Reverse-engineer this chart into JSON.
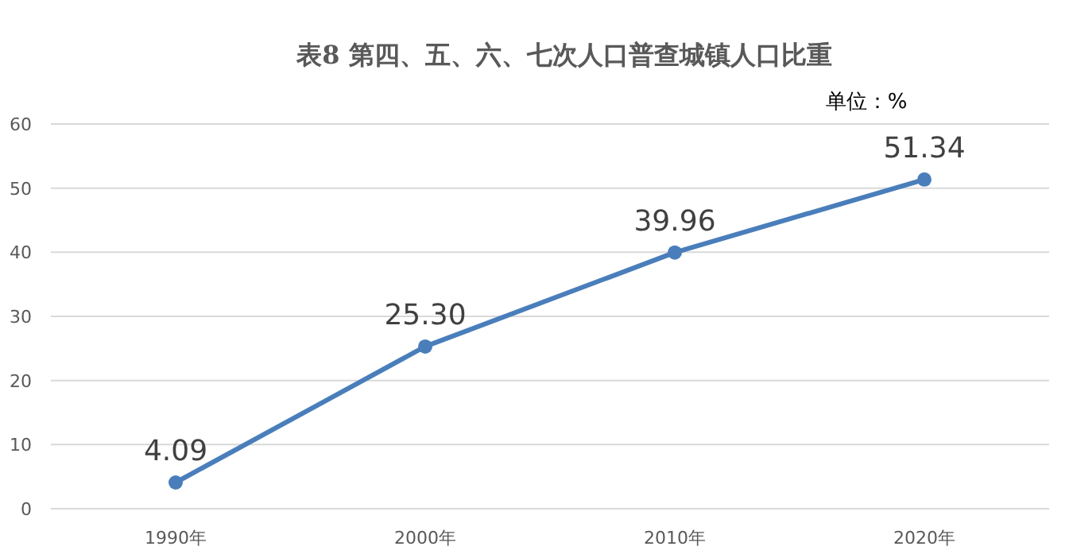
{
  "chart_data": {
    "type": "line",
    "title": "表8  第四、五、六、七次人口普查城镇人口比重",
    "annotations": [
      "单位：%"
    ],
    "categories": [
      "1990年",
      "2000年",
      "2010年",
      "2020年"
    ],
    "values": [
      4.09,
      25.3,
      39.96,
      51.34
    ],
    "value_labels": [
      "4.09",
      "25.30",
      "39.96",
      "51.34"
    ],
    "color": "#4a7ebb",
    "ylim": [
      0,
      60
    ],
    "yticks": [
      0,
      10,
      20,
      30,
      40,
      50,
      60
    ],
    "grid": "y",
    "marker": "circle"
  }
}
